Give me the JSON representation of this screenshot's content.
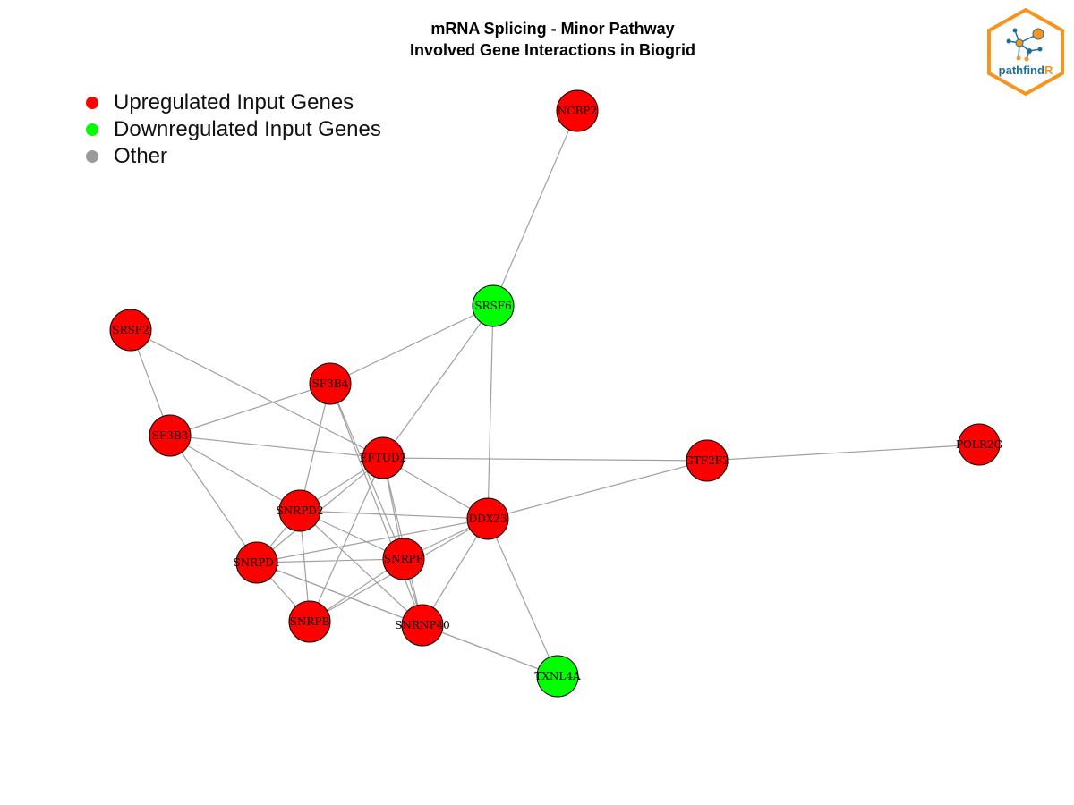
{
  "title": {
    "line1": "mRNA Splicing - Minor Pathway",
    "line2": "Involved Gene Interactions in Biogrid"
  },
  "legend": [
    {
      "label": "Upregulated Input Genes",
      "color": "#ff0000"
    },
    {
      "label": "Downregulated Input Genes",
      "color": "#00ff00"
    },
    {
      "label": "Other",
      "color": "#999999"
    }
  ],
  "logo": {
    "text_main": "pathfind",
    "text_accent": "R",
    "border_color": "#f7941d",
    "main_color": "#1f6e9a",
    "accent_color": "#f7941d"
  },
  "colors": {
    "up": "#ff0000",
    "down": "#00ff00",
    "other": "#999999",
    "edge": "#a0a0a0"
  },
  "network": {
    "nodes": [
      {
        "id": "NCBP2",
        "type": "up"
      },
      {
        "id": "SRSF6",
        "type": "down"
      },
      {
        "id": "SRSF2",
        "type": "up"
      },
      {
        "id": "SF3B4",
        "type": "up"
      },
      {
        "id": "SF3B3",
        "type": "up"
      },
      {
        "id": "EFTUD2",
        "type": "up"
      },
      {
        "id": "GTF2F2",
        "type": "up"
      },
      {
        "id": "POLR2G",
        "type": "up"
      },
      {
        "id": "SNRPD2",
        "type": "up"
      },
      {
        "id": "DDX23",
        "type": "up"
      },
      {
        "id": "SNRPD1",
        "type": "up"
      },
      {
        "id": "SNRPF",
        "type": "up"
      },
      {
        "id": "SNRPB",
        "type": "up"
      },
      {
        "id": "SNRNP40",
        "type": "up"
      },
      {
        "id": "TXNL4A",
        "type": "down"
      }
    ],
    "edges": [
      [
        "NCBP2",
        "SRSF6"
      ],
      [
        "SRSF6",
        "SF3B4"
      ],
      [
        "SRSF6",
        "EFTUD2"
      ],
      [
        "SRSF6",
        "DDX23"
      ],
      [
        "SRSF2",
        "SF3B3"
      ],
      [
        "SRSF2",
        "EFTUD2"
      ],
      [
        "SF3B4",
        "SF3B3"
      ],
      [
        "SF3B4",
        "SNRPD2"
      ],
      [
        "SF3B4",
        "SNRPF"
      ],
      [
        "SF3B4",
        "SNRNP40"
      ],
      [
        "SF3B3",
        "EFTUD2"
      ],
      [
        "SF3B3",
        "SNRPD2"
      ],
      [
        "SF3B3",
        "SNRPD1"
      ],
      [
        "EFTUD2",
        "GTF2F2"
      ],
      [
        "EFTUD2",
        "SNRPD2"
      ],
      [
        "EFTUD2",
        "DDX23"
      ],
      [
        "EFTUD2",
        "SNRPD1"
      ],
      [
        "EFTUD2",
        "SNRPF"
      ],
      [
        "EFTUD2",
        "SNRPB"
      ],
      [
        "EFTUD2",
        "SNRNP40"
      ],
      [
        "GTF2F2",
        "POLR2G"
      ],
      [
        "GTF2F2",
        "DDX23"
      ],
      [
        "SNRPD2",
        "DDX23"
      ],
      [
        "SNRPD2",
        "SNRPD1"
      ],
      [
        "SNRPD2",
        "SNRPF"
      ],
      [
        "SNRPD2",
        "SNRPB"
      ],
      [
        "SNRPD2",
        "SNRNP40"
      ],
      [
        "DDX23",
        "SNRPD1"
      ],
      [
        "DDX23",
        "SNRPF"
      ],
      [
        "DDX23",
        "SNRPB"
      ],
      [
        "DDX23",
        "SNRNP40"
      ],
      [
        "DDX23",
        "TXNL4A"
      ],
      [
        "SNRPD1",
        "SNRPF"
      ],
      [
        "SNRPD1",
        "SNRPB"
      ],
      [
        "SNRPD1",
        "SNRNP40"
      ],
      [
        "SNRPD1",
        "TXNL4A"
      ],
      [
        "SNRPF",
        "SNRPB"
      ],
      [
        "SNRPF",
        "SNRNP40"
      ],
      [
        "SNRNP40",
        "TXNL4A"
      ]
    ]
  }
}
